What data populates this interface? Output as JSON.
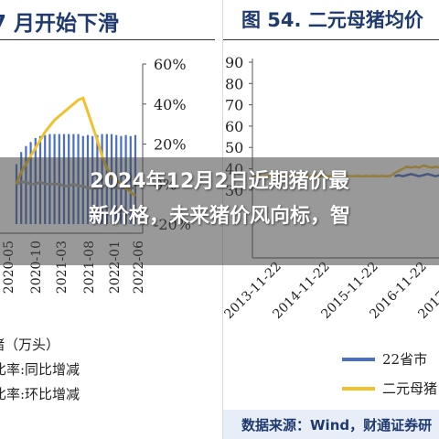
{
  "headline": {
    "line1": "2024年12月2日近期猪价最",
    "line2": "新价格，未来猪价风向标，智"
  },
  "left_panel": {
    "title": "7 月开始下滑",
    "legend": [
      {
        "label": "猪（万头）",
        "kind": "bar",
        "color": "#4a6fc4"
      },
      {
        "label": "比率:同比增减",
        "kind": "line",
        "color": "#f2c12e"
      },
      {
        "label": "比率:环比增减",
        "kind": "line",
        "color": "#a6a6a6"
      }
    ]
  },
  "right_panel": {
    "title": "图 54. 二元母猪均价",
    "legend": [
      {
        "label": "22省市",
        "color": "#4a6fc4"
      },
      {
        "label": "二元母猪",
        "color": "#f2c12e"
      }
    ],
    "source": "数据来源：Wind，财通证券研"
  },
  "chart_data": [
    {
      "type": "bar",
      "title": "7 月开始下滑",
      "x_tick_labels": [
        "2020-05",
        "2020-10",
        "2021-03",
        "2021-08",
        "2022-01",
        "2022-06"
      ],
      "y_right_ticks": [
        "60%",
        "40%",
        "20%",
        "0%",
        "-20%"
      ],
      "y_right_range": [
        -0.2,
        0.6
      ],
      "series": [
        {
          "name": "猪（万头）",
          "kind": "bar",
          "values": [
            0.1,
            0.16,
            0.19,
            0.21,
            0.23,
            0.24,
            0.245,
            0.25,
            0.25,
            0.25,
            0.25,
            0.25,
            0.25,
            0.25,
            0.24,
            0.245,
            0.24,
            0.245,
            0.25,
            0.25,
            0.25,
            0.245,
            0.24,
            0.245,
            0.24,
            0.245
          ]
        },
        {
          "name": "比率:同比增减",
          "kind": "line",
          "values": [
            0.0,
            0.06,
            0.1,
            0.14,
            0.18,
            0.22,
            0.26,
            0.29,
            0.32,
            0.34,
            0.36,
            0.38,
            0.4,
            0.42,
            0.43,
            0.36,
            0.29,
            0.22,
            0.14,
            0.08,
            0.04,
            0.02,
            0.0,
            -0.02,
            -0.04,
            -0.06
          ]
        },
        {
          "name": "比率:环比增减",
          "kind": "line",
          "values": [
            0.0,
            0.01,
            0.01,
            0.0,
            0.0,
            0.01,
            0.0,
            0.0,
            0.0,
            0.0,
            -0.01,
            -0.01,
            0.0,
            -0.01,
            -0.01,
            -0.02,
            -0.02,
            -0.02,
            -0.01,
            -0.01,
            -0.01,
            -0.02,
            -0.02,
            -0.02,
            -0.02,
            -0.02
          ]
        }
      ]
    },
    {
      "type": "line",
      "title": "图 54. 二元母猪均价",
      "x_tick_labels": [
        "2013-11-22",
        "2014-11-22",
        "2015-11-22",
        "2016-11-22",
        "2017-11-22"
      ],
      "y_range": [
        0,
        90
      ],
      "y_ticks": [
        90,
        80,
        70,
        60,
        50,
        40,
        30
      ],
      "series": [
        {
          "name": "22省市",
          "values": [
            null,
            null,
            null,
            null,
            null,
            null,
            null,
            null,
            null,
            null,
            null,
            null,
            null,
            null,
            null,
            null,
            null,
            null,
            null,
            null,
            null,
            null,
            null,
            null,
            null,
            null,
            null,
            null,
            null,
            null,
            null,
            null,
            null,
            null,
            36.5,
            37.0,
            36.5,
            37.0,
            37.5,
            37.0,
            36.5,
            37.0,
            37.5,
            37.0,
            36.5,
            37.0
          ]
        },
        {
          "name": "二元母猪",
          "values": [
            36.5,
            36.6,
            36.5,
            36.7,
            36.6,
            36.5,
            36.6,
            36.5,
            36.6,
            36.6,
            36.5,
            36.6,
            36.5,
            36.6,
            36.5,
            36.6,
            36.5,
            36.6,
            36.5,
            36.6,
            36.5,
            36.6,
            36.5,
            36.6,
            36.5,
            36.6,
            36.5,
            36.6,
            36.5,
            36.6,
            36.5,
            36.6,
            36.5,
            36.6,
            38.0,
            39.0,
            40.0,
            41.0,
            40.5,
            41.0,
            40.5,
            41.5,
            41.0,
            40.5,
            41.0,
            40.5
          ]
        }
      ]
    }
  ]
}
